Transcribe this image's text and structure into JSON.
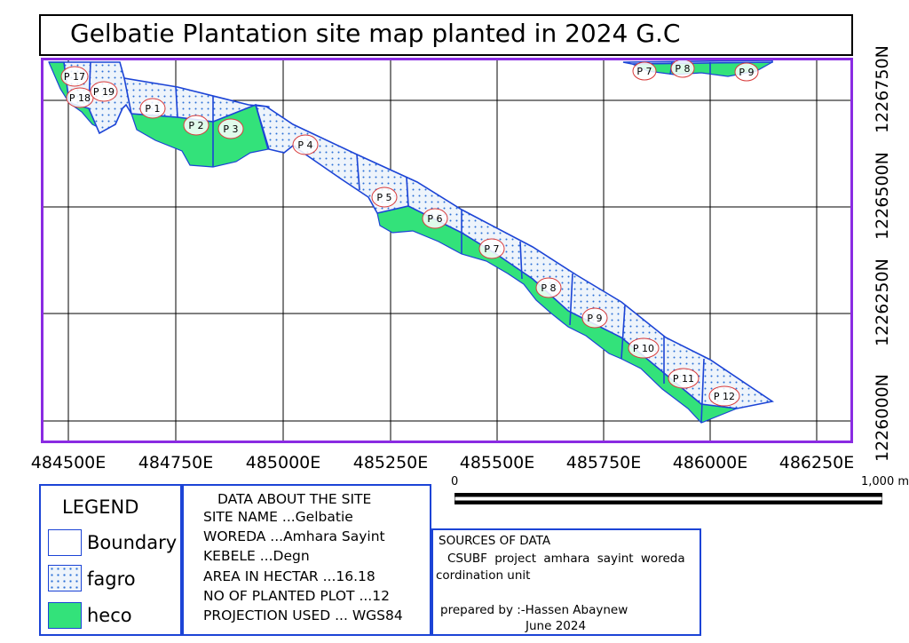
{
  "title": "Gelbatie Plantation site map planted in 2024 G.C",
  "x_axis_labels": [
    "484500E",
    "484750E",
    "485000E",
    "485250E",
    "485500E",
    "485750E",
    "486000E",
    "486250E"
  ],
  "y_axis_labels": [
    "1226750N",
    "1226500N",
    "1226250N",
    "1226000N"
  ],
  "plot_labels": [
    "P 17",
    "P 18",
    "P 19",
    "P 1",
    "P 2",
    "P 3",
    "P 4",
    "P 5",
    "P 6",
    "P 7",
    "P 8",
    "P 9",
    "P 10",
    "P 11",
    "P 12",
    "P 7",
    "P 8",
    "P 9"
  ],
  "scale_bar": {
    "start": "0",
    "end": "1,000 m"
  },
  "legend": {
    "title": "LEGEND",
    "items": [
      {
        "label": "Boundary"
      },
      {
        "label": "fagro"
      },
      {
        "label": "heco"
      }
    ]
  },
  "site_data": {
    "heading": "DATA ABOUT THE SITE",
    "lines": [
      "SITE NAME ...Gelbatie",
      "WOREDA ...Amhara Sayint",
      "KEBELE ...Degn",
      "AREA IN HECTAR ...16.18",
      "NO OF PLANTED PLOT ...12",
      "PROJECTION USED ... WGS84"
    ]
  },
  "sources": {
    "heading": "SOURCES OF DATA",
    "line1": "CSUBF project amhara sayint woreda",
    "line2": "cordination unit",
    "prepared_by": "prepared by :-Hassen Abaynew",
    "date": "June 2024"
  },
  "colors": {
    "boundary": "#1c44d6",
    "heco": "#33e27a",
    "frame": "#8a2be2",
    "label_ring": "#d83a3a"
  }
}
